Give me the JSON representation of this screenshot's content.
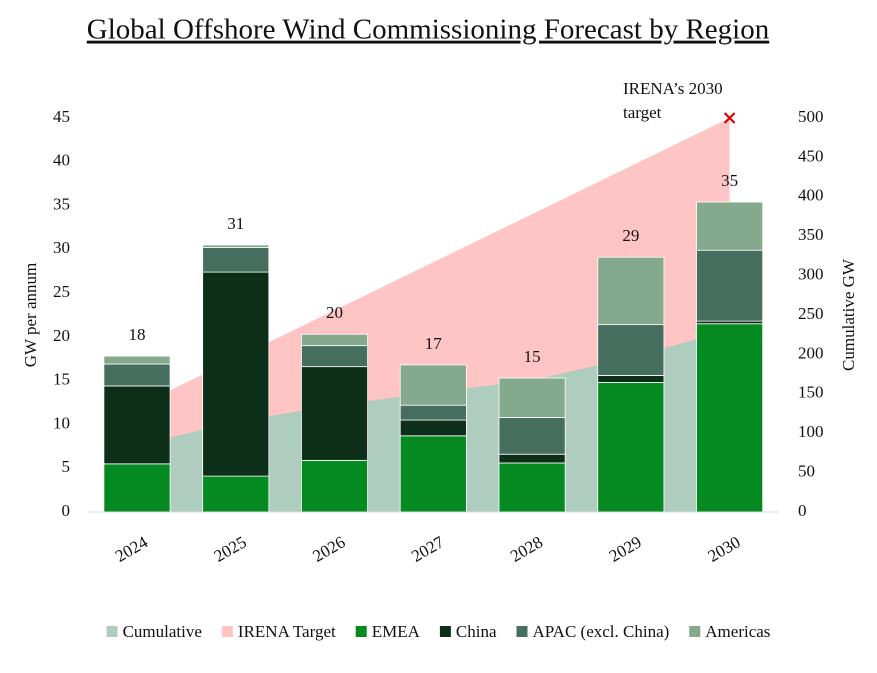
{
  "chart_data": {
    "type": "bar",
    "title": "Global Offshore Wind Commissioning Forecast by Region",
    "y_label": "GW per annum",
    "y2_label": "Cumulative GW",
    "categories": [
      "2024",
      "2025",
      "2026",
      "2027",
      "2028",
      "2029",
      "2030"
    ],
    "ylim": [
      0,
      45
    ],
    "yticks": [
      0,
      5,
      10,
      15,
      20,
      25,
      30,
      35,
      40,
      45
    ],
    "y2lim": [
      0,
      500
    ],
    "y2ticks": [
      0,
      50,
      100,
      150,
      200,
      250,
      300,
      350,
      400,
      450,
      500
    ],
    "series": [
      {
        "name": "Cumulative",
        "color": "#aecdbf",
        "kind": "area",
        "axis": "y2",
        "values": [
          84,
          115,
          135,
          152,
          167,
          196,
          231
        ]
      },
      {
        "name": "IRENA Target",
        "color": "#ffc4c4",
        "kind": "area",
        "axis": "y2",
        "values": [
          134,
          195,
          256,
          317,
          378,
          439,
          500
        ]
      },
      {
        "name": "EMEA",
        "color": "#058a22",
        "kind": "bar",
        "values": [
          5.5,
          4.1,
          5.9,
          8.7,
          5.6,
          14.8,
          21.5
        ]
      },
      {
        "name": "China",
        "color": "#0d2e18",
        "kind": "bar",
        "values": [
          8.9,
          23.3,
          10.7,
          1.8,
          1.0,
          0.8,
          0.3
        ]
      },
      {
        "name": "APAC (excl. China)",
        "color": "#466e5f",
        "kind": "bar",
        "values": [
          2.5,
          2.8,
          2.4,
          1.7,
          4.2,
          5.8,
          8.1
        ]
      },
      {
        "name": "Americas",
        "color": "#84a98c",
        "kind": "bar",
        "values": [
          0.9,
          0.3,
          1.3,
          4.6,
          4.5,
          7.7,
          5.5
        ]
      }
    ],
    "totals": [
      18,
      31,
      20,
      17,
      15,
      29,
      35
    ],
    "annotation": [
      "IRENA’s 2030",
      "target"
    ],
    "marker_color": "#e00000"
  }
}
